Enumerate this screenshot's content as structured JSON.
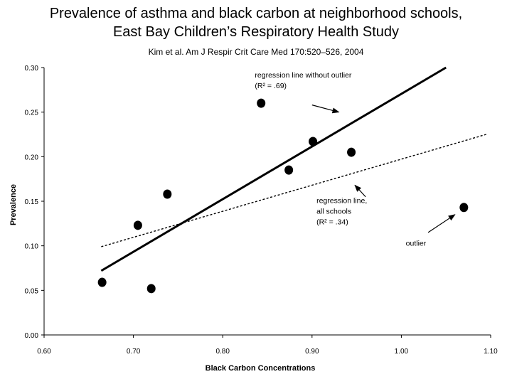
{
  "page": {
    "title_line1": "Prevalence of asthma and black carbon at neighborhood schools,",
    "title_line2": "East Bay Children’s Respiratory Health Study",
    "citation": "Kim et al.  Am J Respir Crit Care Med 170:520–526, 2004"
  },
  "chart_data": {
    "type": "scatter",
    "xlabel": "Black Carbon Concentrations",
    "ylabel": "Prevalence",
    "xlim": [
      0.6,
      1.1
    ],
    "ylim": [
      0.0,
      0.3
    ],
    "x_ticks": [
      "0.60",
      "0.70",
      "0.80",
      "0.90",
      "1.00",
      "1.10"
    ],
    "y_ticks": [
      "0.00",
      "0.05",
      "0.10",
      "0.15",
      "0.20",
      "0.25",
      "0.30"
    ],
    "points": [
      {
        "x": 0.665,
        "y": 0.059
      },
      {
        "x": 0.705,
        "y": 0.123
      },
      {
        "x": 0.72,
        "y": 0.052
      },
      {
        "x": 0.738,
        "y": 0.158
      },
      {
        "x": 0.843,
        "y": 0.26
      },
      {
        "x": 0.874,
        "y": 0.185
      },
      {
        "x": 0.901,
        "y": 0.217
      },
      {
        "x": 0.944,
        "y": 0.205
      },
      {
        "x": 1.07,
        "y": 0.143
      }
    ],
    "lines": [
      {
        "name": "regression line without outlier",
        "style": "solid",
        "x": [
          0.664,
          1.05
        ],
        "y": [
          0.072,
          0.3
        ]
      },
      {
        "name": "regression line, all schools",
        "style": "dashed",
        "x": [
          0.664,
          1.095
        ],
        "y": [
          0.099,
          0.225
        ]
      }
    ],
    "annotations": [
      {
        "lines": [
          "regression line without outlier",
          "(R² = .69)"
        ],
        "x": 0.836,
        "y": 0.289,
        "arrow_from": [
          0.9,
          0.258
        ],
        "arrow_to": [
          0.93,
          0.25
        ]
      },
      {
        "lines": [
          "regression line,",
          "all schools",
          "(R² = .34)"
        ],
        "x": 0.905,
        "y": 0.148,
        "arrow_from": [
          0.96,
          0.155
        ],
        "arrow_to": [
          0.948,
          0.168
        ]
      },
      {
        "lines": [
          "outlier"
        ],
        "x": 1.005,
        "y": 0.1,
        "arrow_from": [
          1.03,
          0.115
        ],
        "arrow_to": [
          1.06,
          0.135
        ]
      }
    ],
    "grid": false,
    "legend": "none"
  }
}
